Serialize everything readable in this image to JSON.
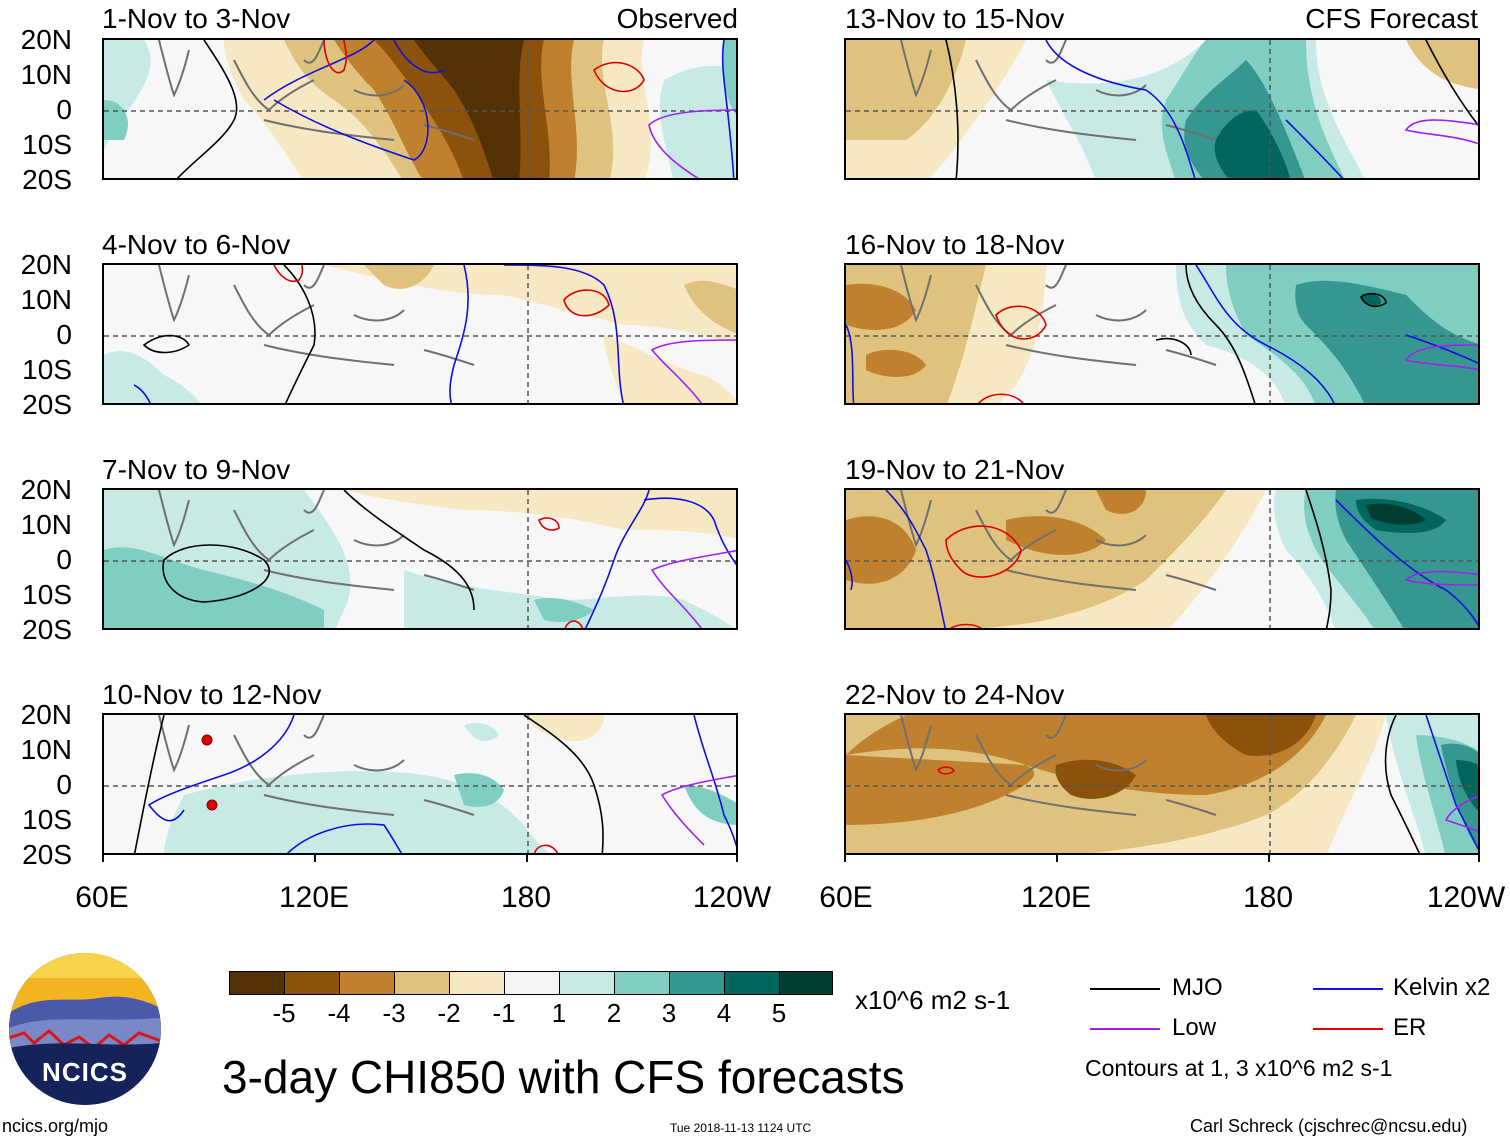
{
  "title": "3-day CHI850 with CFS forecasts",
  "column_labels": {
    "left": "Observed",
    "right": "CFS Forecast"
  },
  "panels": [
    {
      "title": "1-Nov to 3-Nov"
    },
    {
      "title": "4-Nov to 6-Nov"
    },
    {
      "title": "7-Nov to 9-Nov"
    },
    {
      "title": "10-Nov to 12-Nov"
    },
    {
      "title": "13-Nov to 15-Nov"
    },
    {
      "title": "16-Nov to 18-Nov"
    },
    {
      "title": "19-Nov to 21-Nov"
    },
    {
      "title": "22-Nov to 24-Nov"
    }
  ],
  "lat_labels": [
    "20N",
    "10N",
    "0",
    "10S",
    "20S"
  ],
  "lon_labels": [
    "60E",
    "120E",
    "180",
    "120W"
  ],
  "colorbar": {
    "colors": [
      "#543005",
      "#8c510a",
      "#bf812d",
      "#dfc27d",
      "#f6e8c3",
      "#f5f5f5",
      "#c7eae5",
      "#80cdc1",
      "#35978f",
      "#01665e",
      "#003c30"
    ],
    "labels": [
      "-5",
      "-4",
      "-3",
      "-2",
      "-1",
      "1",
      "2",
      "3",
      "4",
      "5"
    ],
    "units": "x10^6 m2 s-1"
  },
  "legend": [
    {
      "label": "MJO",
      "color": "#000000"
    },
    {
      "label": "Kelvin x2",
      "color": "#1010e0"
    },
    {
      "label": "Low",
      "color": "#a020f0"
    },
    {
      "label": "ER",
      "color": "#e00000"
    }
  ],
  "contour_note": "Contours at 1, 3 x10^6 m2 s-1",
  "logo_text": "NCICS",
  "footer": {
    "left": "ncics.org/mjo",
    "middle": "Tue 2018-11-13 1124 UTC",
    "right": "Carl Schreck (cjschrec@ncsu.edu)"
  }
}
